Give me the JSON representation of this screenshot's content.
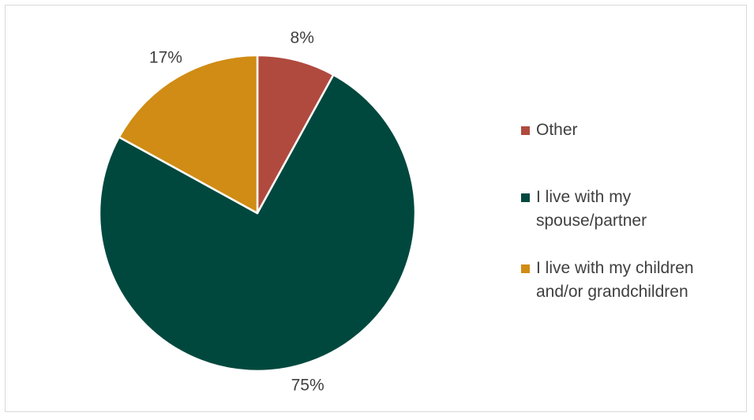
{
  "chart_data": {
    "type": "pie",
    "title": "",
    "slices": [
      {
        "label": "Other",
        "value": 8,
        "data_label": "8%",
        "color": "#b04a3e"
      },
      {
        "label": "I live with my spouse/partner",
        "value": 75,
        "data_label": "75%",
        "color": "#00483e"
      },
      {
        "label": "I live with my children and/or grandchildren",
        "value": 17,
        "data_label": "17%",
        "color": "#d08c14"
      }
    ],
    "start_angle_deg": 0,
    "direction": "clockwise",
    "legend_position": "right"
  },
  "legend": {
    "items": [
      {
        "label_line1": "Other",
        "label_line2": "",
        "color": "#b04a3e"
      },
      {
        "label_line1": "I live with my",
        "label_line2": "spouse/partner",
        "color": "#00483e"
      },
      {
        "label_line1": "I live with my children",
        "label_line2": "and/or grandchildren",
        "color": "#d08c14"
      }
    ]
  }
}
